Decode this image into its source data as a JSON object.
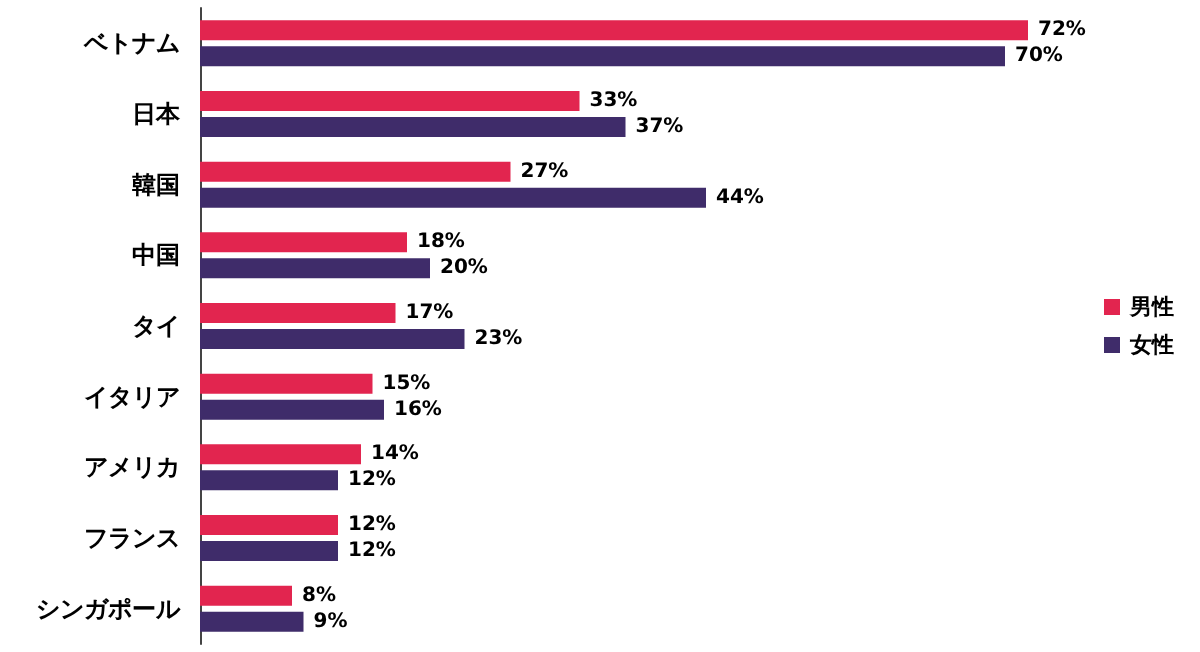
{
  "chart_data": {
    "type": "bar",
    "orientation": "horizontal",
    "categories": [
      "ベトナム",
      "日本",
      "韓国",
      "中国",
      "タイ",
      "イタリア",
      "アメリカ",
      "フランス",
      "シンガポール"
    ],
    "series": [
      {
        "name": "男性",
        "color": "#e2254f",
        "values": [
          72,
          33,
          27,
          18,
          17,
          15,
          14,
          12,
          8
        ],
        "value_labels": [
          "72%",
          "33%",
          "27%",
          "18%",
          "17%",
          "15%",
          "14%",
          "12%",
          "8%"
        ]
      },
      {
        "name": "女性",
        "color": "#3f2c6a",
        "values": [
          70,
          37,
          44,
          20,
          23,
          16,
          12,
          12,
          9
        ],
        "value_labels": [
          "70%",
          "37%",
          "44%",
          "20%",
          "23%",
          "16%",
          "12%",
          "12%",
          "9%"
        ]
      }
    ],
    "legend": "right"
  }
}
